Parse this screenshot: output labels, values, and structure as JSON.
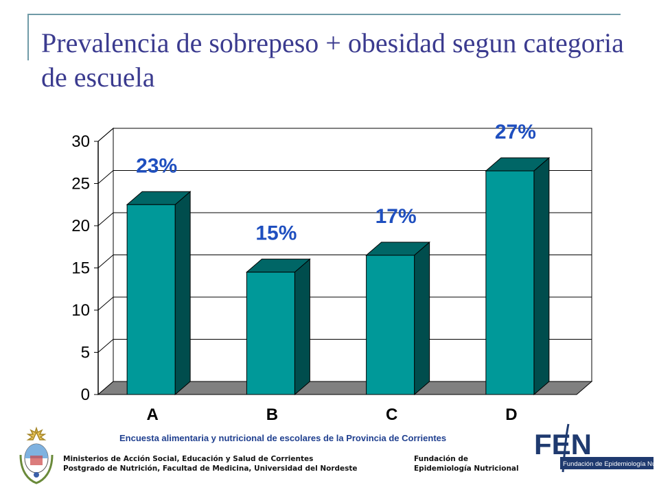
{
  "slide": {
    "title": "Prevalencia de sobrepeso + obesidad segun categoria de escuela"
  },
  "chart_data": {
    "type": "bar",
    "categories": [
      "A",
      "B",
      "C",
      "D"
    ],
    "values": [
      22.5,
      14.5,
      16.5,
      26.5
    ],
    "data_labels": [
      "23%",
      "15%",
      "17%",
      "27%"
    ],
    "ylim": [
      0,
      30
    ],
    "yticks": [
      0,
      5,
      10,
      15,
      20,
      25,
      30
    ],
    "grid": true,
    "colors": {
      "bar_front": "#009999",
      "bar_side": "#004d4d",
      "bar_top": "#006666",
      "floor": "#808080",
      "label": "#1f4fbf"
    }
  },
  "footer": {
    "survey": "Encuesta alimentaria y  nutricional de escolares de la Provincia de Corrientes",
    "left_line1": "Ministerios de Acción Social, Educación y Salud de Corrientes",
    "left_line2": "Postgrado de Nutrición, Facultad de Medicina, Universidad del Nordeste",
    "right_line1": "Fundación de",
    "right_line2": "Epidemiología Nutricional",
    "fen_logo_text": "FEN",
    "fen_logo_subtext": "Fundación de Epidemiología Nutricional",
    "crest_icon": "coat-of-arms-icon"
  }
}
